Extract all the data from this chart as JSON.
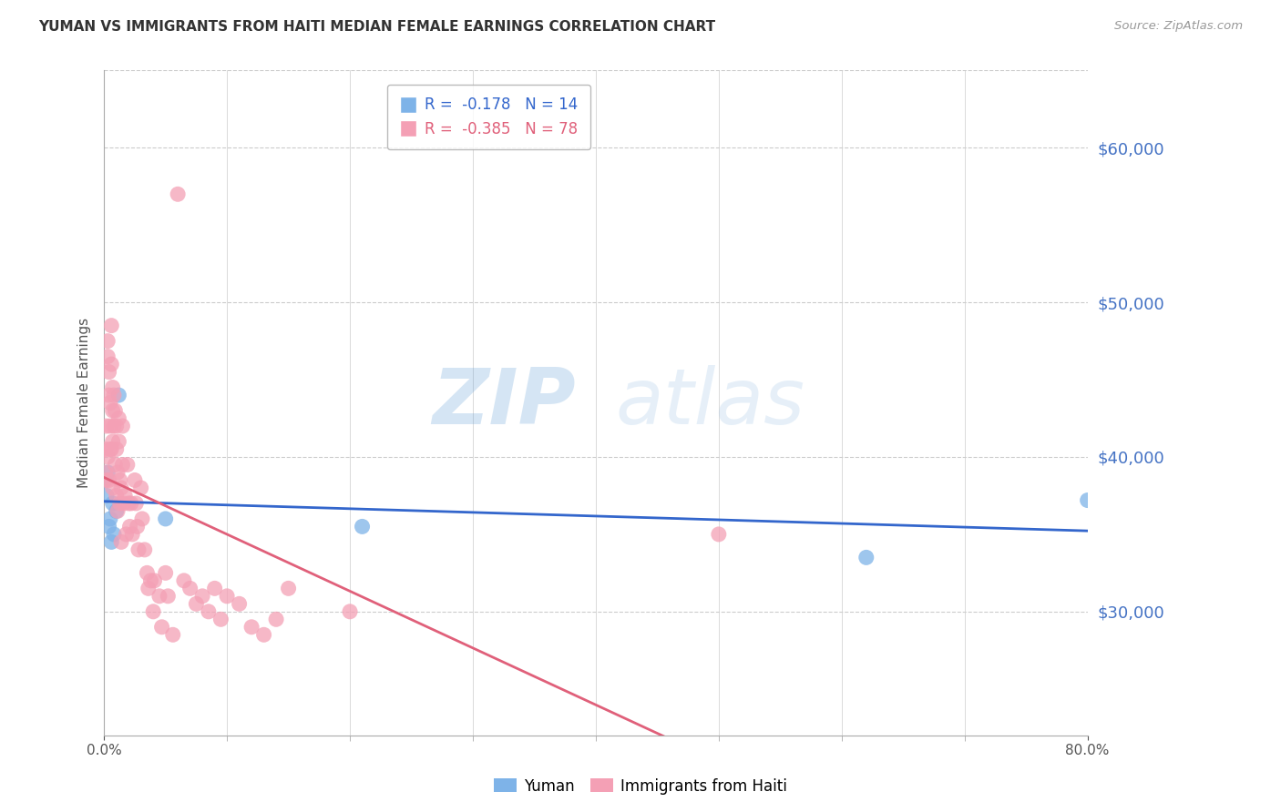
{
  "title": "YUMAN VS IMMIGRANTS FROM HAITI MEDIAN FEMALE EARNINGS CORRELATION CHART",
  "source": "Source: ZipAtlas.com",
  "xlabel_yuman": "Yuman",
  "xlabel_haiti": "Immigrants from Haiti",
  "ylabel": "Median Female Earnings",
  "legend_yuman": {
    "R": -0.178,
    "N": 14
  },
  "legend_haiti": {
    "R": -0.385,
    "N": 78
  },
  "yuman_color": "#7EB3E8",
  "haiti_color": "#F4A0B5",
  "trend_blue": "#3366CC",
  "trend_pink": "#E0607A",
  "grid_color": "#CCCCCC",
  "right_label_color": "#4472C4",
  "watermark_zip": "ZIP",
  "watermark_atlas": "atlas",
  "xmin": 0.0,
  "xmax": 0.8,
  "ymin": 22000,
  "ymax": 65000,
  "yticks": [
    30000,
    40000,
    50000,
    60000
  ],
  "xticks": [
    0.0,
    0.8
  ],
  "yuman_x": [
    0.001,
    0.002,
    0.003,
    0.004,
    0.005,
    0.006,
    0.007,
    0.008,
    0.01,
    0.012,
    0.05,
    0.21,
    0.62,
    0.8
  ],
  "yuman_y": [
    38500,
    37500,
    39000,
    35500,
    36000,
    34500,
    37000,
    35000,
    36500,
    44000,
    36000,
    35500,
    33500,
    37200
  ],
  "haiti_x": [
    0.001,
    0.001,
    0.002,
    0.002,
    0.003,
    0.003,
    0.003,
    0.004,
    0.004,
    0.004,
    0.005,
    0.005,
    0.005,
    0.006,
    0.006,
    0.006,
    0.007,
    0.007,
    0.007,
    0.007,
    0.008,
    0.008,
    0.009,
    0.009,
    0.01,
    0.01,
    0.01,
    0.011,
    0.011,
    0.012,
    0.012,
    0.013,
    0.013,
    0.014,
    0.014,
    0.015,
    0.015,
    0.016,
    0.017,
    0.018,
    0.019,
    0.02,
    0.021,
    0.022,
    0.023,
    0.025,
    0.026,
    0.027,
    0.028,
    0.03,
    0.031,
    0.033,
    0.035,
    0.036,
    0.038,
    0.04,
    0.041,
    0.045,
    0.047,
    0.05,
    0.052,
    0.056,
    0.06,
    0.065,
    0.07,
    0.075,
    0.08,
    0.085,
    0.09,
    0.095,
    0.1,
    0.11,
    0.12,
    0.13,
    0.14,
    0.15,
    0.2,
    0.5
  ],
  "haiti_y": [
    40500,
    39000,
    42000,
    38500,
    47500,
    46500,
    40000,
    45500,
    44000,
    38500,
    43500,
    42000,
    40500,
    48500,
    46000,
    40500,
    44500,
    43000,
    41000,
    38000,
    44000,
    42000,
    43000,
    39500,
    42000,
    40500,
    37500,
    39000,
    36500,
    42500,
    41000,
    38500,
    37000,
    38000,
    34500,
    42000,
    39500,
    37000,
    37500,
    35000,
    39500,
    37000,
    35500,
    37000,
    35000,
    38500,
    37000,
    35500,
    34000,
    38000,
    36000,
    34000,
    32500,
    31500,
    32000,
    30000,
    32000,
    31000,
    29000,
    32500,
    31000,
    28500,
    57000,
    32000,
    31500,
    30500,
    31000,
    30000,
    31500,
    29500,
    31000,
    30500,
    29000,
    28500,
    29500,
    31500,
    30000,
    35000
  ]
}
